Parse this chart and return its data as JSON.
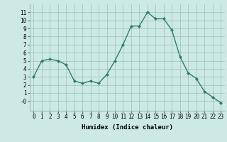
{
  "x": [
    0,
    1,
    2,
    3,
    4,
    5,
    6,
    7,
    8,
    9,
    10,
    11,
    12,
    13,
    14,
    15,
    16,
    17,
    18,
    19,
    20,
    21,
    22,
    23
  ],
  "y": [
    3.0,
    5.0,
    5.2,
    5.0,
    4.5,
    2.5,
    2.2,
    2.5,
    2.2,
    3.3,
    5.0,
    7.0,
    9.3,
    9.3,
    11.0,
    10.2,
    10.2,
    8.8,
    5.5,
    3.5,
    2.8,
    1.2,
    0.5,
    -0.2
  ],
  "line_color": "#2e7d6e",
  "marker": "D",
  "marker_size": 2,
  "bg_color": "#cce9e4",
  "grid_color": "#9bbfba",
  "xlabel": "Humidex (Indice chaleur)",
  "xlim": [
    -0.5,
    23.5
  ],
  "ylim": [
    -1.2,
    12
  ],
  "yticks": [
    0,
    1,
    2,
    3,
    4,
    5,
    6,
    7,
    8,
    9,
    10,
    11
  ],
  "ytick_labels": [
    "-0",
    "1",
    "2",
    "3",
    "4",
    "5",
    "6",
    "7",
    "8",
    "9",
    "10",
    "11"
  ],
  "xticks": [
    0,
    1,
    2,
    3,
    4,
    5,
    6,
    7,
    8,
    9,
    10,
    11,
    12,
    13,
    14,
    15,
    16,
    17,
    18,
    19,
    20,
    21,
    22,
    23
  ],
  "axis_fontsize": 6.5,
  "tick_fontsize": 5.5,
  "xlabel_fontsize": 6.5
}
